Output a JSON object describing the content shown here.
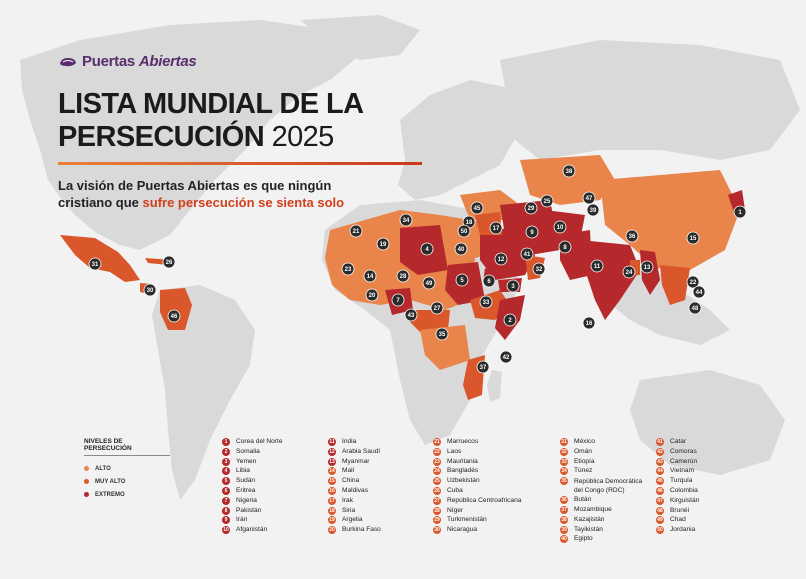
{
  "brand": {
    "name_part1": "Puertas",
    "name_part2": "Abiertas"
  },
  "title": {
    "line1": "LISTA MUNDIAL DE LA",
    "line2": "PERSECUCIÓN",
    "year": "2025"
  },
  "subtitle": {
    "line1": "La visión de Puertas Abiertas es que ningún",
    "line2_a": "cristiano que ",
    "line2_b": "sufre persecución se sienta solo"
  },
  "colors": {
    "alto": "#e9844a",
    "muy_alto": "#d9572a",
    "extremo": "#b5282b",
    "land": "#d9d9d9",
    "ocean": "#f2f2f2",
    "marker": "#2b2b2b"
  },
  "legend": {
    "title": "NIVELES DE PERSECUCIÓN",
    "items": [
      {
        "label": "ALTO",
        "color": "#e9844a"
      },
      {
        "label": "MUY ALTO",
        "color": "#d9572a"
      },
      {
        "label": "EXTREMO",
        "color": "#b5282b"
      }
    ]
  },
  "ranking": [
    {
      "rank": "1",
      "country": "Corea del Norte",
      "level": "extremo"
    },
    {
      "rank": "2",
      "country": "Somalia",
      "level": "extremo"
    },
    {
      "rank": "3",
      "country": "Yemen",
      "level": "extremo"
    },
    {
      "rank": "4",
      "country": "Libia",
      "level": "extremo"
    },
    {
      "rank": "5",
      "country": "Sudán",
      "level": "extremo"
    },
    {
      "rank": "6",
      "country": "Eritrea",
      "level": "extremo"
    },
    {
      "rank": "7",
      "country": "Nigeria",
      "level": "extremo"
    },
    {
      "rank": "8",
      "country": "Pakistán",
      "level": "extremo"
    },
    {
      "rank": "9",
      "country": "Irán",
      "level": "extremo"
    },
    {
      "rank": "10",
      "country": "Afganistán",
      "level": "extremo"
    },
    {
      "rank": "11",
      "country": "India",
      "level": "extremo"
    },
    {
      "rank": "12",
      "country": "Arabia Saudí",
      "level": "extremo"
    },
    {
      "rank": "13",
      "country": "Myanmar",
      "level": "extremo"
    },
    {
      "rank": "14",
      "country": "Malí",
      "level": "muy_alto"
    },
    {
      "rank": "15",
      "country": "China",
      "level": "muy_alto"
    },
    {
      "rank": "16",
      "country": "Maldivas",
      "level": "muy_alto"
    },
    {
      "rank": "17",
      "country": "Irak",
      "level": "muy_alto"
    },
    {
      "rank": "18",
      "country": "Siria",
      "level": "muy_alto"
    },
    {
      "rank": "19",
      "country": "Argelia",
      "level": "muy_alto"
    },
    {
      "rank": "20",
      "country": "Burkina Faso",
      "level": "muy_alto"
    },
    {
      "rank": "21",
      "country": "Marruecos",
      "level": "muy_alto"
    },
    {
      "rank": "22",
      "country": "Laos",
      "level": "muy_alto"
    },
    {
      "rank": "23",
      "country": "Mauritania",
      "level": "muy_alto"
    },
    {
      "rank": "24",
      "country": "Bangladés",
      "level": "muy_alto"
    },
    {
      "rank": "25",
      "country": "Uzbekistán",
      "level": "muy_alto"
    },
    {
      "rank": "26",
      "country": "Cuba",
      "level": "muy_alto"
    },
    {
      "rank": "27",
      "country": "República Centroafricana",
      "level": "muy_alto"
    },
    {
      "rank": "28",
      "country": "Níger",
      "level": "muy_alto"
    },
    {
      "rank": "29",
      "country": "Turkmenistán",
      "level": "muy_alto"
    },
    {
      "rank": "30",
      "country": "Nicaragua",
      "level": "muy_alto"
    },
    {
      "rank": "31",
      "country": "México",
      "level": "muy_alto"
    },
    {
      "rank": "32",
      "country": "Omán",
      "level": "muy_alto"
    },
    {
      "rank": "33",
      "country": "Etiopía",
      "level": "muy_alto"
    },
    {
      "rank": "34",
      "country": "Túnez",
      "level": "muy_alto"
    },
    {
      "rank": "35",
      "country": "República Democrática del Congo (RDC)",
      "level": "muy_alto"
    },
    {
      "rank": "36",
      "country": "Bután",
      "level": "muy_alto"
    },
    {
      "rank": "37",
      "country": "Mozambique",
      "level": "muy_alto"
    },
    {
      "rank": "38",
      "country": "Kazajistán",
      "level": "muy_alto"
    },
    {
      "rank": "39",
      "country": "Tayikistán",
      "level": "muy_alto"
    },
    {
      "rank": "40",
      "country": "Egipto",
      "level": "muy_alto"
    },
    {
      "rank": "41",
      "country": "Catar",
      "level": "muy_alto"
    },
    {
      "rank": "42",
      "country": "Comoras",
      "level": "muy_alto"
    },
    {
      "rank": "43",
      "country": "Camerún",
      "level": "muy_alto"
    },
    {
      "rank": "44",
      "country": "Vietnam",
      "level": "muy_alto"
    },
    {
      "rank": "45",
      "country": "Turquía",
      "level": "muy_alto"
    },
    {
      "rank": "46",
      "country": "Colombia",
      "level": "muy_alto"
    },
    {
      "rank": "47",
      "country": "Kirguistán",
      "level": "muy_alto"
    },
    {
      "rank": "48",
      "country": "Brunéi",
      "level": "muy_alto"
    },
    {
      "rank": "49",
      "country": "Chad",
      "level": "muy_alto"
    },
    {
      "rank": "50",
      "country": "Jordania",
      "level": "muy_alto"
    }
  ]
}
